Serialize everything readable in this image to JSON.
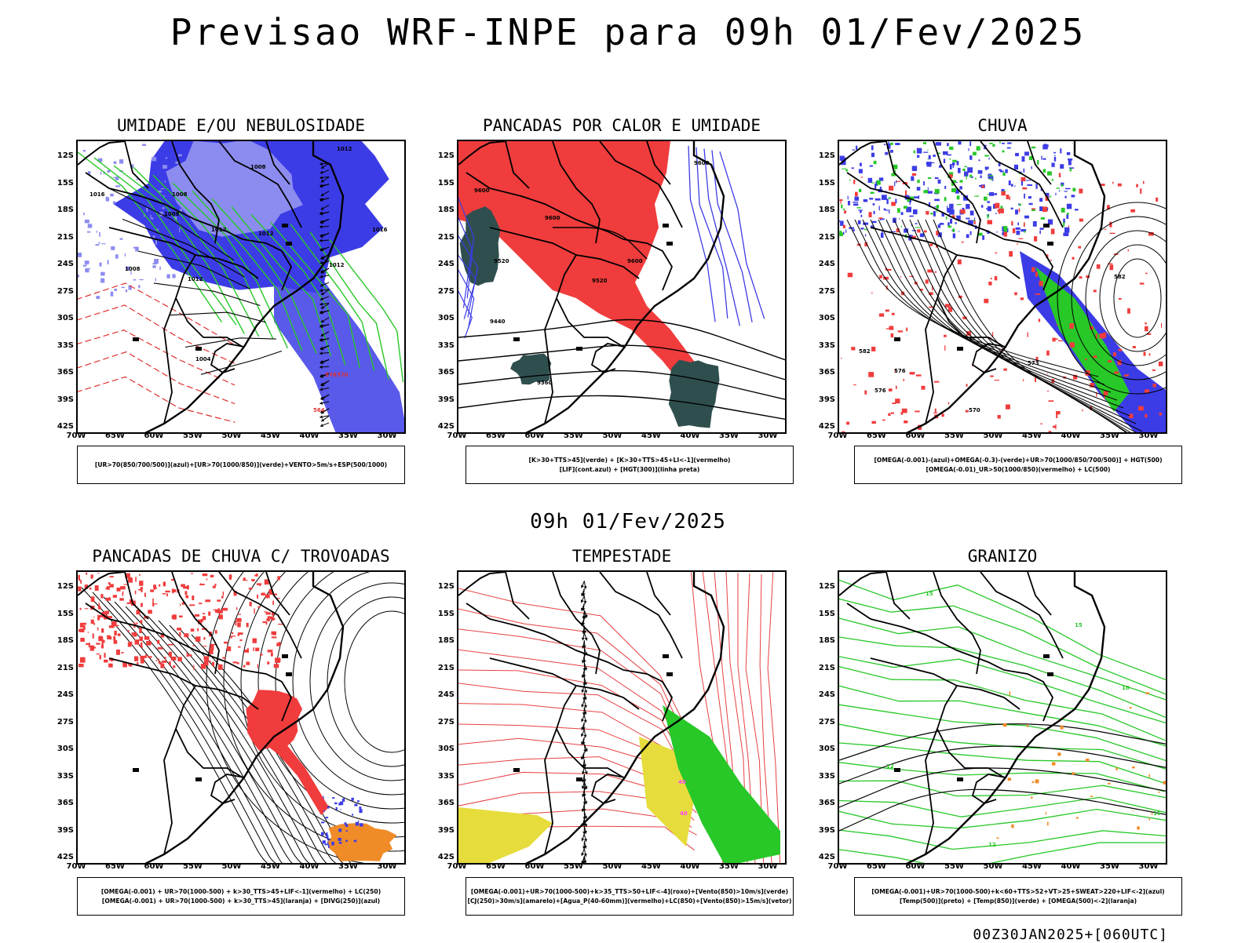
{
  "title": "Previsao WRF-INPE  para 09h 01/Fev/2025",
  "mid_time": "09h 01/Fev/2025",
  "footer": "00Z30JAN2025+[060UTC]",
  "lat_labels": [
    "12S",
    "15S",
    "18S",
    "21S",
    "24S",
    "27S",
    "30S",
    "33S",
    "36S",
    "39S",
    "42S"
  ],
  "lon_labels": [
    "70W",
    "65W",
    "60W",
    "55W",
    "50W",
    "45W",
    "40W",
    "35W",
    "30W"
  ],
  "panels": [
    {
      "title": "UMIDADE E/OU NEBULOSIDADE",
      "legend": [
        "[UR>70(850/700/500)](azul)+[UR>70(1000/850)](verde)+VENTO>5m/s+ESP(500/1000)"
      ],
      "contour_labels": [
        "1012",
        "1008",
        "1016",
        "1008",
        "1012",
        "1008",
        "1016",
        "1012",
        "1008",
        "1012",
        "1012",
        "1004",
        "570",
        "564",
        "576"
      ]
    },
    {
      "title": "PANCADAS POR CALOR E UMIDADE",
      "legend": [
        "[K>30+TTS>45](verde) + [K>30+TTS>45+LI<-1](vermelho)",
        "[LIF](cont.azul) + [HGT(300)](linha preta)"
      ],
      "contour_labels": [
        "9600",
        "9600",
        "9600",
        "9520",
        "9600",
        "9520",
        "9440",
        "9360"
      ]
    },
    {
      "title": "CHUVA",
      "legend": [
        "[OMEGA(-0.001)-(azul)+OMEGA(-0.3)-(verde)+UR>70(1000/850/700/500)] + HGT(500)",
        "[OMEGA(-0.01)_UR>50(1000/850)(vermelho) + LC(500)"
      ],
      "contour_labels": [
        "582",
        "576",
        "576",
        "573",
        "570",
        "582"
      ]
    },
    {
      "title": "PANCADAS DE CHUVA C/ TROVOADAS",
      "legend": [
        "[OMEGA(-0.001) + UR>70(1000-500) + k>30_TTS>45+LIF<-1](vermelho) + LC(250)",
        "[OMEGA(-0.001) + UR>70(1000-500) + k>30_TTS>45](laranja) + [DIVG(250)](azul)"
      ],
      "contour_labels": []
    },
    {
      "title": "TEMPESTADE",
      "legend": [
        "[OMEGA(-0.001)+UR>70(1000-500)+k>35_TTS>50+LIF<-4](roxo)+[Vento(850)>10m/s](verde)",
        "[CJ(250)>30m/s](amarelo)+[Agua_P(40-60mm)](vermelho)+LC(850)+[Vento(850)>15m/s](vetor)"
      ],
      "contour_labels": [
        "40",
        "40"
      ]
    },
    {
      "title": "GRANIZO",
      "legend": [
        "[OMEGA(-0.001)+UR>70(1000-500)+k<60+TTS>52+VT>25+SWEAT>220+LIF<-2](azul)",
        "[Temp(500)](preto) + [Temp(850)](verde) + [OMEGA(500)<-2](laranja)"
      ],
      "contour_labels": [
        "15",
        "15",
        "12",
        "18",
        "12",
        "15"
      ]
    }
  ],
  "colors": {
    "red": "#f03c3c",
    "blue": "#3c3ce6",
    "lightblue": "#8c8cf0",
    "green": "#28c828",
    "darkgreen": "#2f4f4f",
    "orange": "#f08c28",
    "yellow": "#e6dc3c"
  }
}
